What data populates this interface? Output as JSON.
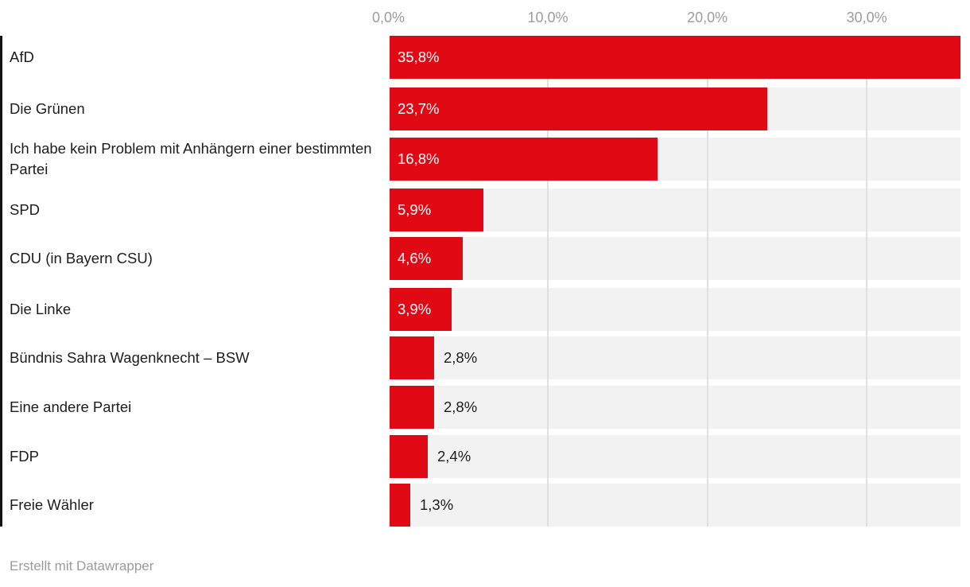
{
  "chart_data": {
    "type": "bar",
    "orientation": "horizontal",
    "title": "",
    "xlabel": "",
    "ylabel": "",
    "xlim": [
      0,
      35.8
    ],
    "grid": true,
    "legend": false,
    "categories": [
      "AfD",
      "Die Grünen",
      "Ich habe kein Problem mit Anhängern einer bestimmten Partei",
      "SPD",
      "CDU (in Bayern CSU)",
      "Die Linke",
      "Bündnis Sahra Wagenknecht – BSW",
      "Eine andere Partei",
      "FDP",
      "Freie Wähler"
    ],
    "values": [
      35.8,
      23.7,
      16.8,
      5.9,
      4.6,
      3.9,
      2.8,
      2.8,
      2.4,
      1.3
    ],
    "value_labels": [
      "35,8%",
      "23,7%",
      "16,8%",
      "5,9%",
      "4,6%",
      "3,9%",
      "2,8%",
      "2,8%",
      "2,4%",
      "1,3%"
    ],
    "x_ticks": [
      "0,0%",
      "10,0%",
      "20,0%",
      "30,0%"
    ],
    "x_tick_values": [
      0,
      10,
      20,
      30
    ],
    "colors": {
      "bar": "#e10a14",
      "track": "#f2f2f2",
      "gridline": "#e0e0e0",
      "axis_line": "#141414",
      "category_label": "#1d1d1d",
      "value_inside": "#ffffff",
      "value_outside": "#1d1d1d",
      "tick_label": "#9c9c9c",
      "footer": "#9b9b9b",
      "background": "#ffffff"
    }
  },
  "footer": {
    "credit": "Erstellt mit Datawrapper"
  }
}
